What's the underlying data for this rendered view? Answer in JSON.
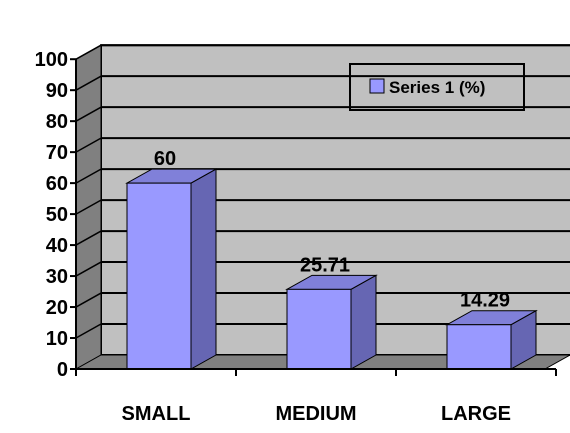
{
  "chart_data": {
    "type": "bar",
    "categories": [
      "SMALL",
      "MEDIUM",
      "LARGE"
    ],
    "series": [
      {
        "name": "Series 1 (%)",
        "values": [
          60,
          25.71,
          14.29
        ]
      }
    ],
    "data_labels": [
      "60",
      "25.71",
      "14.29"
    ],
    "y_ticks": [
      "0",
      "10",
      "20",
      "30",
      "40",
      "50",
      "60",
      "70",
      "80",
      "90",
      "100"
    ],
    "ylim": [
      0,
      100
    ],
    "grid": true,
    "three_d": true,
    "legend": {
      "position": "top-right",
      "label": "Series 1 (%)"
    },
    "colors": {
      "bar_front": "#9999ff",
      "bar_side": "#6666b3",
      "bar_top": "#8080d9",
      "wall": "#c0c0c0",
      "side_wall": "#808080",
      "floor": "#808080"
    }
  }
}
